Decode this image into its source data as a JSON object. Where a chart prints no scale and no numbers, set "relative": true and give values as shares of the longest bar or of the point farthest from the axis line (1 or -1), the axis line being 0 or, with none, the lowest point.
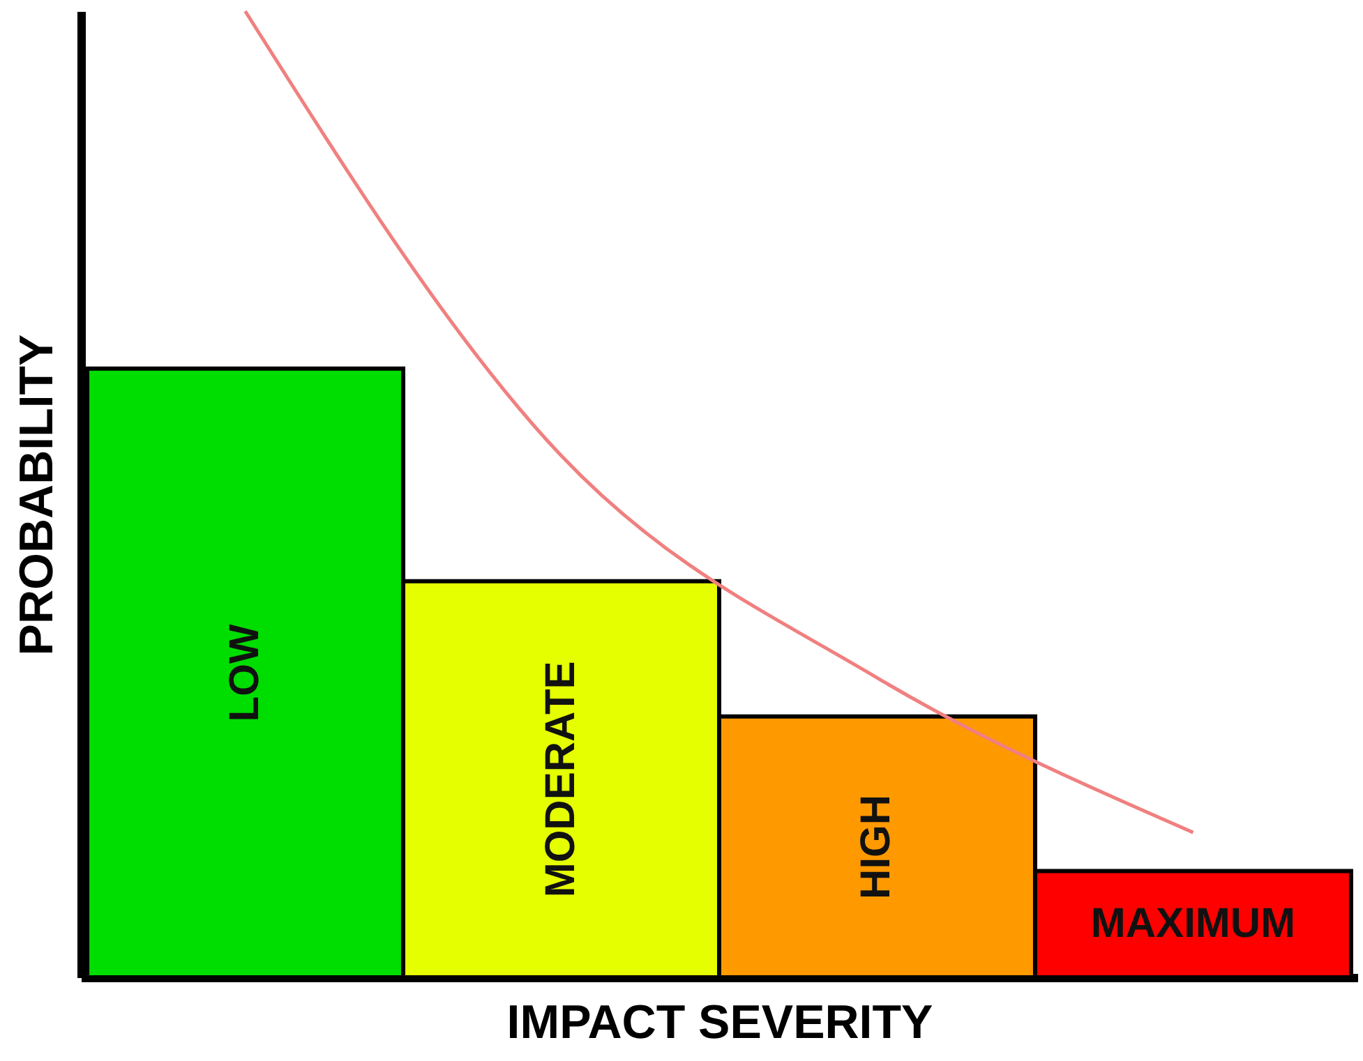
{
  "chart_data": {
    "type": "bar",
    "relative": true,
    "xlabel": "IMPACT SEVERITY",
    "ylabel": "PROBABILITY",
    "categories": [
      "LOW",
      "MODERATE",
      "HIGH",
      "MAXIMUM"
    ],
    "series": [
      {
        "colors": [
          "#00dd00",
          "#e5ff00",
          "#ff9900",
          "#ff0000"
        ],
        "values": [
          0.63,
          0.41,
          0.27,
          0.11
        ]
      },
      {
        "type": "line",
        "color": "#f08080",
        "values": [
          1,
          0.54,
          0.31,
          0.15
        ]
      }
    ]
  }
}
